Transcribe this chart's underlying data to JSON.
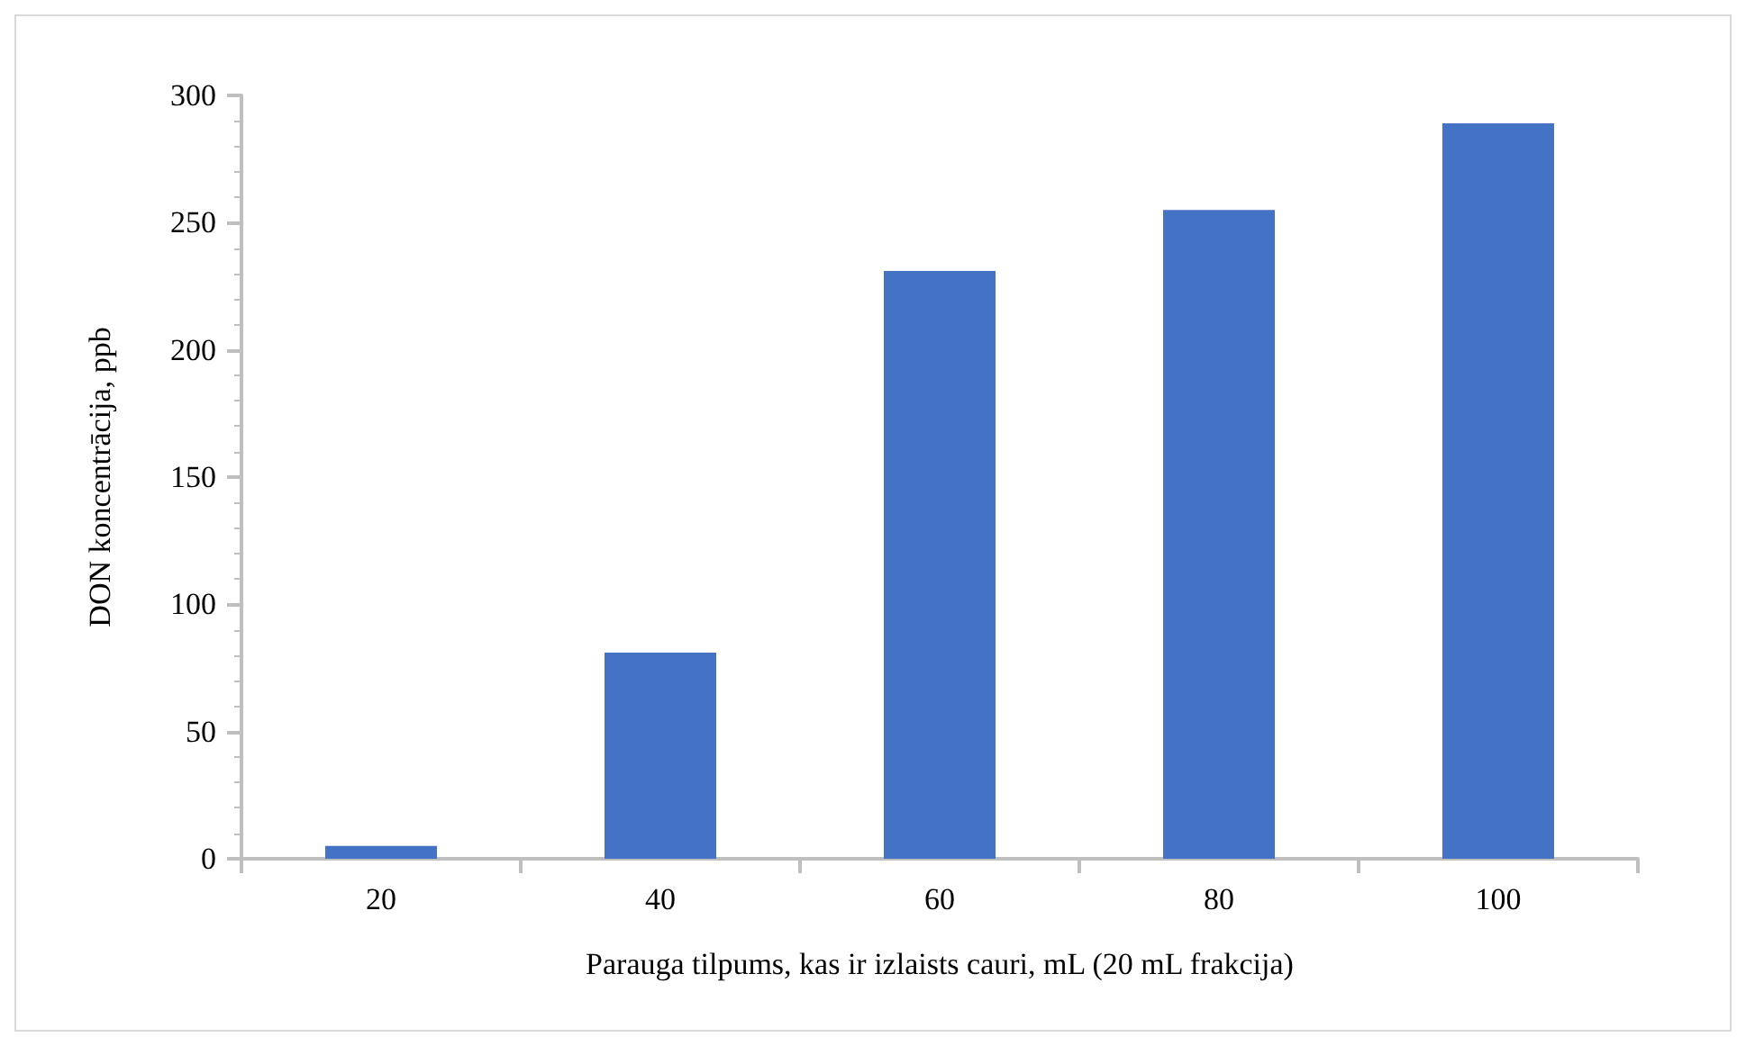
{
  "chart_data": {
    "type": "bar",
    "xlabel": "Parauga tilpums, kas ir izlaists cauri, mL (20 mL frakcija)",
    "ylabel": "DON koncentrācija, ppb",
    "categories": [
      "20",
      "40",
      "60",
      "80",
      "100"
    ],
    "values": [
      5,
      81,
      231,
      255,
      289
    ],
    "color": "#4472c4",
    "ylim": [
      0,
      300
    ],
    "yticks": [
      0,
      50,
      100,
      150,
      200,
      250,
      300
    ],
    "grid": false
  }
}
